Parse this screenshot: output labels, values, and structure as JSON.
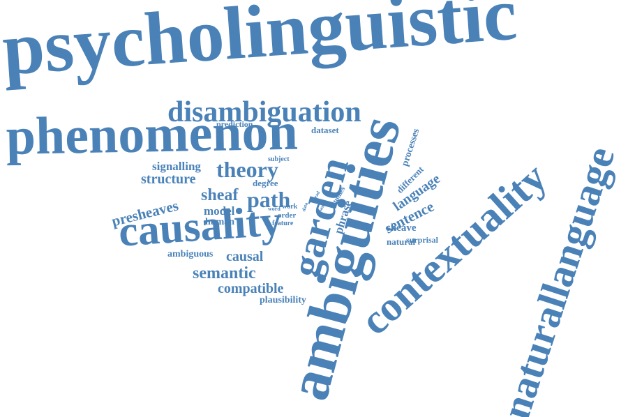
{
  "cloud": {
    "color": "#4a82b8",
    "words": [
      "psycholinguistic",
      "phenomenon",
      "disambiguation",
      "ambiguities",
      "contextuality",
      "naturallanguage",
      "causality",
      "garden",
      "theory",
      "path",
      "sheaf",
      "structure",
      "signalling",
      "presheaves",
      "semantic",
      "causal",
      "compatible",
      "plausibility",
      "ambiguous",
      "model",
      "human",
      "prediction",
      "dataset",
      "subject",
      "degree",
      "processes",
      "different",
      "language",
      "sentence",
      "sheave",
      "surprisal",
      "natural",
      "phrase",
      "studies",
      "order",
      "feature",
      "work",
      "word",
      "lead",
      "data",
      "many"
    ]
  }
}
